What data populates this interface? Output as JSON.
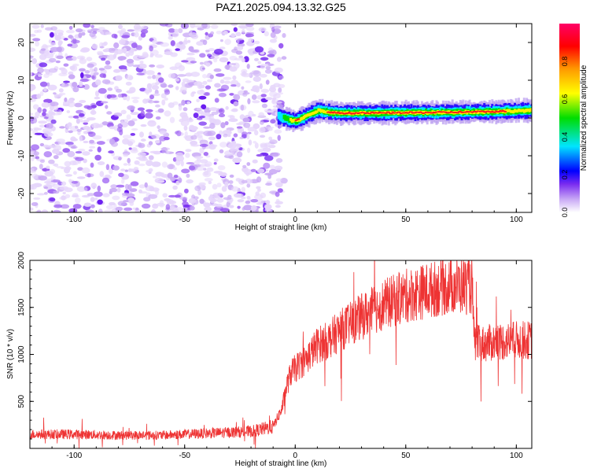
{
  "title": "PAZ1.2025.094.13.32.G25",
  "chart_data": [
    {
      "type": "heatmap",
      "xlabel": "Height of straight line (km)",
      "ylabel": "Frequency (Hz)",
      "xlim": [
        -120,
        107
      ],
      "ylim": [
        -25,
        25
      ],
      "x_ticks": [
        -100,
        -50,
        0,
        50,
        100
      ],
      "y_ticks": [
        -20,
        -10,
        0,
        10,
        20
      ],
      "colorbar": {
        "label": "Normalized spectral amplitude",
        "range": [
          0,
          1
        ],
        "ticks": [
          0.0,
          0.2,
          0.4,
          0.6,
          0.8
        ],
        "tick_labels": [
          "0.0",
          "0.2",
          "0.4",
          "0.6",
          "0.8"
        ],
        "colors": [
          "#ffffff",
          "#c8a8f5",
          "#7a2cf0",
          "#0000ff",
          "#00e5ff",
          "#00dd00",
          "#ffff00",
          "#ff9900",
          "#ff0000",
          "#ff0066"
        ]
      },
      "noise_region": {
        "x_range": [
          -120,
          -8
        ],
        "y_range": [
          -25,
          25
        ],
        "amplitude_range": [
          0.0,
          0.1
        ]
      },
      "signal_trace": {
        "x": [
          -8,
          -5,
          -3,
          0,
          3,
          6,
          10,
          14,
          20,
          30,
          50,
          70,
          90,
          100,
          107
        ],
        "frequency": [
          0.5,
          0.0,
          -0.5,
          -0.7,
          0.0,
          1.0,
          2.0,
          1.6,
          1.3,
          1.3,
          1.4,
          1.5,
          1.7,
          1.9,
          2.0
        ],
        "peak_amplitude": [
          0.3,
          0.5,
          0.6,
          0.85,
          0.75,
          0.8,
          0.6,
          0.8,
          0.9,
          0.95,
          0.95,
          0.92,
          0.9,
          0.7,
          0.7
        ]
      }
    },
    {
      "type": "line",
      "xlabel": "Height of straight line (km)",
      "ylabel": "SNR (10 * v/v)",
      "xlim": [
        -120,
        107
      ],
      "ylim": [
        0,
        2000
      ],
      "x_ticks": [
        -100,
        -50,
        0,
        50,
        100
      ],
      "y_ticks": [
        500,
        1000,
        1500,
        2000
      ],
      "line_color": "#ee3333",
      "series": [
        {
          "x": [
            -120,
            -100,
            -80,
            -60,
            -40,
            -20,
            -10,
            -6,
            -4,
            -2,
            0,
            5,
            10,
            15,
            20,
            30,
            40,
            50,
            60,
            70,
            80,
            81,
            85,
            90,
            95,
            100,
            107
          ],
          "values": [
            150,
            150,
            140,
            140,
            160,
            180,
            230,
            420,
            650,
            800,
            850,
            950,
            1100,
            1150,
            1250,
            1400,
            1530,
            1620,
            1680,
            1730,
            1730,
            1120,
            1110,
            1130,
            1140,
            1150,
            1150
          ]
        }
      ]
    }
  ]
}
